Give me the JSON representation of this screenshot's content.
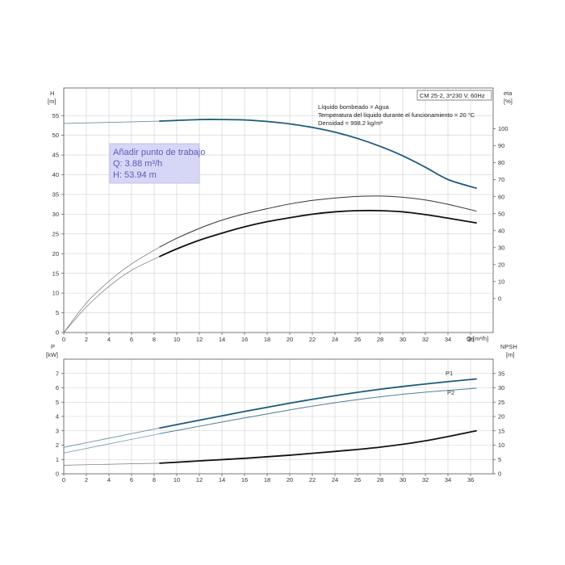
{
  "chart_data": [
    {
      "type": "line",
      "panel": "head-efficiency",
      "x_axis": {
        "unit_label": "Q [m³/h]",
        "ticks": [
          0,
          2,
          4,
          6,
          8,
          10,
          12,
          14,
          16,
          18,
          20,
          22,
          24,
          26,
          28,
          30,
          32,
          34,
          36
        ],
        "range": [
          0,
          38
        ]
      },
      "y_left": {
        "label": "H",
        "unit": "[m]",
        "ticks": [
          0,
          5,
          10,
          15,
          20,
          25,
          30,
          35,
          40,
          45,
          50,
          55
        ],
        "range": [
          0,
          62
        ]
      },
      "y_right": {
        "label": "eta",
        "unit": "[%]",
        "ticks": [
          0,
          10,
          20,
          30,
          40,
          50,
          60,
          70,
          80,
          90,
          100
        ],
        "range": [
          -20,
          124
        ]
      },
      "grid": true,
      "info_header": "CM 25-2, 3*230 V, 60Hz",
      "info_lines": [
        "Líquido bombeado = Agua",
        "Temperatura del líquido durante el funcionamiento = 20 °C",
        "Densidad = 998.2 kg/m³"
      ],
      "duty_point_box": {
        "title": "Añadir punto de trabajo",
        "q": "Q: 3.88 m³/h",
        "h": "H: 53.94 m"
      },
      "series": [
        {
          "key": "head_thin",
          "axis": "left",
          "color": "#6a8fa3",
          "width": 0.9,
          "x": [
            0,
            8.5
          ],
          "y": [
            53.0,
            53.6
          ]
        },
        {
          "key": "head",
          "axis": "left",
          "color": "#1c5a7c",
          "width": 1.8,
          "x": [
            8.5,
            12,
            14,
            16,
            18,
            20,
            22,
            24,
            26,
            28,
            30,
            32,
            34,
            36.5
          ],
          "y": [
            53.6,
            54.0,
            54.0,
            53.9,
            53.5,
            52.9,
            52.0,
            50.8,
            49.2,
            47.2,
            44.8,
            41.9,
            38.8,
            36.6
          ]
        },
        {
          "key": "eta_thin",
          "axis": "left",
          "color": "#777777",
          "width": 0.7,
          "x": [
            0,
            2,
            4,
            6,
            8.5
          ],
          "y": [
            0,
            7.5,
            13,
            17.4,
            21.7
          ]
        },
        {
          "key": "eta_upper",
          "axis": "left",
          "color": "#333333",
          "width": 1.0,
          "x": [
            8.5,
            10,
            12,
            14,
            16,
            18,
            20,
            22,
            24,
            26,
            28,
            30,
            32,
            34,
            36.5
          ],
          "y": [
            21.7,
            23.9,
            26.4,
            28.5,
            30.1,
            31.4,
            32.6,
            33.5,
            34.1,
            34.5,
            34.6,
            34.3,
            33.6,
            32.5,
            30.8
          ]
        },
        {
          "key": "eta2_thin",
          "axis": "left",
          "color": "#777777",
          "width": 0.7,
          "x": [
            0,
            2,
            4,
            6,
            8.5
          ],
          "y": [
            0,
            6.5,
            11.7,
            15.8,
            19.3
          ]
        },
        {
          "key": "eta2",
          "axis": "left",
          "color": "#111111",
          "width": 1.8,
          "x": [
            8.5,
            10,
            12,
            14,
            16,
            18,
            20,
            22,
            24,
            26,
            28,
            30,
            32,
            34,
            36.5
          ],
          "y": [
            19.3,
            21.2,
            23.4,
            25.2,
            26.8,
            28.1,
            29.1,
            30.0,
            30.6,
            30.9,
            30.9,
            30.6,
            29.9,
            29.0,
            27.8
          ]
        }
      ]
    },
    {
      "type": "line",
      "panel": "power-npsh",
      "x_axis": {
        "ticks": [
          0,
          2,
          4,
          6,
          8,
          10,
          12,
          14,
          16,
          18,
          20,
          22,
          24,
          26,
          28,
          30,
          32,
          34,
          36
        ],
        "range": [
          0,
          38
        ]
      },
      "y_left": {
        "label": "P",
        "unit": "[kW]",
        "ticks": [
          0,
          1,
          2,
          3,
          4,
          5,
          6,
          7
        ],
        "range": [
          0,
          8
        ]
      },
      "y_right": {
        "label": "NPSH",
        "unit": "[m]",
        "ticks": [
          0,
          5,
          10,
          15,
          20,
          25,
          30,
          35
        ],
        "range": [
          0,
          40
        ]
      },
      "grid": true,
      "series": [
        {
          "key": "p1_thin",
          "axis": "left",
          "color": "#6a8fa3",
          "width": 0.9,
          "x": [
            0,
            8.5
          ],
          "y": [
            1.85,
            3.2
          ]
        },
        {
          "key": "p1",
          "axis": "left",
          "color": "#1c5a7c",
          "width": 1.8,
          "label": "P1",
          "x": [
            8.5,
            12,
            16,
            20,
            24,
            28,
            32,
            36.5
          ],
          "y": [
            3.2,
            3.74,
            4.35,
            4.93,
            5.45,
            5.9,
            6.27,
            6.62
          ]
        },
        {
          "key": "p2_thin",
          "axis": "left",
          "color": "#6a8fa3",
          "width": 0.7,
          "x": [
            0,
            8.5
          ],
          "y": [
            1.45,
            2.8
          ]
        },
        {
          "key": "p2",
          "axis": "left",
          "color": "#4a7f9a",
          "width": 1.0,
          "label": "P2",
          "x": [
            8.5,
            12,
            16,
            20,
            24,
            28,
            32,
            36.5
          ],
          "y": [
            2.8,
            3.32,
            3.9,
            4.46,
            4.96,
            5.37,
            5.7,
            5.97
          ]
        },
        {
          "key": "npsh_thin",
          "axis": "right",
          "color": "#777777",
          "width": 0.7,
          "x": [
            0,
            8.5
          ],
          "y": [
            3.0,
            3.7
          ]
        },
        {
          "key": "npsh",
          "axis": "right",
          "color": "#111111",
          "width": 1.8,
          "x": [
            8.5,
            12,
            16,
            20,
            24,
            28,
            32,
            36.5
          ],
          "y": [
            3.7,
            4.5,
            5.4,
            6.5,
            7.8,
            9.3,
            11.5,
            15.0
          ]
        }
      ]
    }
  ]
}
